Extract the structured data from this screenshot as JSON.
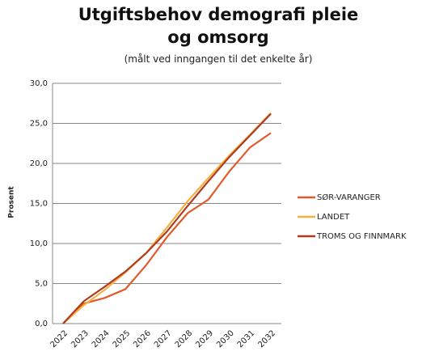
{
  "chart_data": {
    "type": "line",
    "title": "Utgiftsbehov demografi pleie og omsorg",
    "subtitle": "(målt ved inngangen til det enkelte år)",
    "y_label": "Prosent",
    "categories": [
      "2022",
      "2023",
      "2024",
      "2025",
      "2026",
      "2027",
      "2028",
      "2029",
      "2030",
      "2031",
      "2032"
    ],
    "series": [
      {
        "name": "SØR-VARANGER",
        "color": "#e05a2b",
        "values": [
          0,
          2.5,
          3.2,
          4.3,
          7.3,
          10.8,
          13.8,
          15.5,
          19,
          22,
          23.8
        ]
      },
      {
        "name": "LANDET",
        "color": "#f5b041",
        "values": [
          0,
          2.3,
          4.2,
          6.4,
          8.8,
          12,
          15.3,
          18.2,
          21,
          23.6,
          26.3
        ]
      },
      {
        "name": "TROMS OG FINNMARK",
        "color": "#b03a1e",
        "values": [
          0,
          2.8,
          4.6,
          6.5,
          8.8,
          11.5,
          14.7,
          17.8,
          20.8,
          23.5,
          26.2
        ]
      }
    ],
    "ylim": [
      0,
      30
    ],
    "yticks": [
      {
        "value": 0,
        "label": "0,0"
      },
      {
        "value": 5,
        "label": "5,0"
      },
      {
        "value": 10,
        "label": "10,0"
      },
      {
        "value": 15,
        "label": "15,0"
      },
      {
        "value": 20,
        "label": "20,0"
      },
      {
        "value": 25,
        "label": "25,0"
      },
      {
        "value": 30,
        "label": "30,0"
      }
    ],
    "grid": true,
    "legend": "right"
  }
}
